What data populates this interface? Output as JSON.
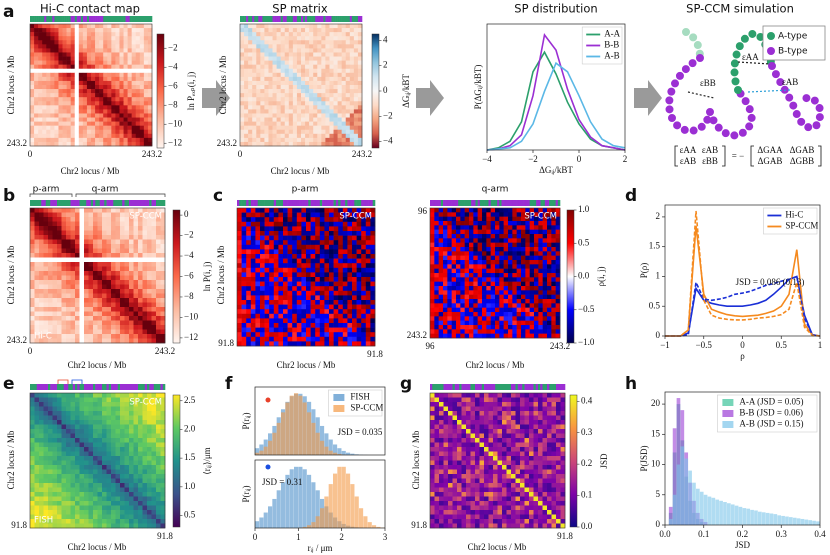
{
  "panels": {
    "a": {
      "letter": "a",
      "title": "Hi-C contact map",
      "axis_label": "Chr2 locus / Mb",
      "ticks": [
        0,
        243.2
      ],
      "colorbar": {
        "label": "ln Pₑₓₚ(i, j)",
        "lim": [
          -12.5,
          -0.5
        ],
        "ticks": [
          {
            "value": -2,
            "label": "−2"
          },
          {
            "value": -4,
            "label": "−4"
          },
          {
            "value": -6,
            "label": "−6"
          },
          {
            "value": -8,
            "label": "−8"
          },
          {
            "value": -10,
            "label": "−10"
          },
          {
            "value": -12,
            "label": "−12"
          }
        ]
      }
    },
    "sp": {
      "title": "SP matrix",
      "axis_label": "Chr2 locus / Mb",
      "ticks": [
        0,
        243.2
      ],
      "colorbar": {
        "label": "ΔGᵢⱼ/kBT",
        "lim": [
          -4.5,
          4.5
        ],
        "ticks": [
          4,
          2,
          0,
          {
            "value": -2,
            "label": "−2"
          },
          {
            "value": -4,
            "label": "−4"
          }
        ]
      }
    },
    "sim": {
      "title": "SP-CCM simulation",
      "legend": [
        "A-type",
        "B-type"
      ],
      "eps": [
        "εAA",
        "εAB",
        "εBB"
      ],
      "matrix_left": [
        [
          "εAA",
          "εAB"
        ],
        [
          "εAB",
          "εBB"
        ]
      ],
      "equals": "= −",
      "matrix_right": [
        [
          "ΔGAA",
          "ΔGAB"
        ],
        [
          "ΔGAB",
          "ΔGBB"
        ]
      ]
    },
    "b": {
      "letter": "b",
      "arms": [
        "p-arm",
        "q-arm"
      ],
      "tags": [
        "SP-CCM",
        "Hi-C"
      ],
      "axis_label": "Chr2 locus / Mb",
      "ticks": [
        0,
        243.2
      ],
      "colorbar": {
        "label": "ln P(i, j)",
        "lim": [
          -12.5,
          0.5
        ],
        "ticks": [
          0,
          {
            "value": -2,
            "label": "−2"
          },
          {
            "value": -4,
            "label": "−4"
          },
          {
            "value": -6,
            "label": "−6"
          },
          {
            "value": -8,
            "label": "−8"
          },
          {
            "value": -10,
            "label": "−10"
          },
          {
            "value": -12,
            "label": "−12"
          }
        ]
      }
    },
    "c": {
      "letter": "c",
      "arms": [
        "p-arm",
        "q-arm"
      ],
      "tag": "SP-CCM",
      "axis_label": "Chr2 locus / Mb",
      "p_ticks": [
        91.8
      ],
      "q_ticks": [
        96,
        243.2
      ],
      "colorbar": {
        "label": "ρ(i, j)",
        "lim": [
          -1,
          1
        ],
        "ticks": [
          {
            "value": 1,
            "label": "1.0"
          },
          0.5,
          {
            "value": 0,
            "label": "0.0"
          },
          {
            "value": -0.5,
            "label": "−0.5"
          },
          {
            "value": -1,
            "label": "−1.0"
          }
        ]
      }
    },
    "d": {
      "letter": "d"
    },
    "e": {
      "letter": "e",
      "tags": [
        "SP-CCM",
        "FISH"
      ],
      "axis_label": "Chr2 locus / Mb",
      "ticks": [
        91.8
      ],
      "colorbar": {
        "label": "⟨rᵢⱼ⟩/μm",
        "lim": [
          0.3,
          2.6
        ],
        "ticks": [
          0.5,
          {
            "value": 1,
            "label": "1.0"
          },
          1.5,
          {
            "value": 2,
            "label": "2.0"
          },
          2.5
        ]
      }
    },
    "f": {
      "letter": "f"
    },
    "g": {
      "letter": "g",
      "axis_label": "Chr2 locus / Mb",
      "ticks": [
        91.8
      ],
      "colorbar": {
        "label": "JSD",
        "lim": [
          0,
          0.42
        ],
        "ticks": [
          {
            "value": 0,
            "label": "0.0"
          },
          0.1,
          0.2,
          0.3,
          0.4
        ]
      }
    },
    "h": {
      "letter": "h"
    }
  },
  "chart_data": [
    {
      "type": "line",
      "title": "SP distribution",
      "xlabel": "ΔGᵢⱼ/kBT",
      "ylabel": "P(ΔGᵢⱼ/kBT)",
      "x": [
        -4,
        -3.5,
        -3,
        -2.5,
        -2,
        -1.5,
        -1,
        -0.5,
        0,
        0.5,
        1,
        1.5,
        2
      ],
      "xlim": [
        -4,
        2
      ],
      "ylim": [
        0,
        0.58
      ],
      "xticks": [
        {
          "value": -4,
          "label": "−4"
        },
        {
          "value": -2,
          "label": "−2"
        },
        0,
        2
      ],
      "legend": "upper right",
      "series": [
        {
          "name": "A-A",
          "color": "#2ca06c",
          "values": [
            0,
            0.01,
            0.04,
            0.13,
            0.36,
            0.45,
            0.35,
            0.22,
            0.12,
            0.05,
            0.02,
            0.01,
            0
          ]
        },
        {
          "name": "B-B",
          "color": "#9b2fd3",
          "values": [
            0,
            0.005,
            0.02,
            0.07,
            0.25,
            0.53,
            0.46,
            0.28,
            0.14,
            0.06,
            0.02,
            0.01,
            0
          ]
        },
        {
          "name": "A-B",
          "color": "#5bb8e6",
          "values": [
            0,
            0.005,
            0.01,
            0.04,
            0.12,
            0.27,
            0.4,
            0.36,
            0.25,
            0.13,
            0.05,
            0.02,
            0.01
          ]
        }
      ]
    },
    {
      "type": "line",
      "xlabel": "ρ",
      "ylabel": "P(ρ)",
      "x": [
        -1,
        -0.9,
        -0.8,
        -0.7,
        -0.6,
        -0.5,
        -0.4,
        -0.3,
        -0.2,
        -0.1,
        0,
        0.1,
        0.2,
        0.3,
        0.4,
        0.5,
        0.6,
        0.7,
        0.8,
        0.9,
        1
      ],
      "xlim": [
        -1,
        1
      ],
      "ylim": [
        0,
        2.2
      ],
      "xticks": [
        {
          "value": -1,
          "label": "−1"
        },
        {
          "value": -0.5,
          "label": "−0.5"
        },
        0,
        0.5,
        1
      ],
      "yticks": [
        0,
        0.5,
        1,
        1.5,
        2
      ],
      "annotation": "JSD = 0.086 (0.13)",
      "legend": "upper right",
      "series": [
        {
          "name": "Hi-C",
          "color": "#1a2fd6",
          "values": [
            0,
            0,
            0,
            0.05,
            0.8,
            0.6,
            0.55,
            0.52,
            0.5,
            0.5,
            0.5,
            0.52,
            0.55,
            0.6,
            0.7,
            0.82,
            0.95,
            1.0,
            0.35,
            0.02,
            0
          ]
        },
        {
          "name": "SP-CCM",
          "color": "#f58a1f",
          "values": [
            0,
            0,
            0,
            0.1,
            1.85,
            0.7,
            0.45,
            0.4,
            0.36,
            0.34,
            0.33,
            0.34,
            0.35,
            0.38,
            0.42,
            0.5,
            0.7,
            1.45,
            0.2,
            0.02,
            0
          ]
        },
        {
          "color": "#1a2fd6",
          "style": "dashed",
          "values": [
            0,
            0,
            0,
            0.02,
            0.9,
            0.62,
            0.6,
            0.62,
            0.65,
            0.7,
            0.72,
            0.75,
            0.8,
            0.85,
            0.88,
            0.92,
            0.95,
            1.0,
            0.3,
            0.02,
            0
          ]
        },
        {
          "color": "#f58a1f",
          "style": "dashed",
          "values": [
            0,
            0,
            0,
            0.1,
            2.1,
            0.6,
            0.35,
            0.3,
            0.28,
            0.27,
            0.27,
            0.28,
            0.3,
            0.31,
            0.33,
            0.36,
            0.45,
            0.9,
            0.15,
            0.01,
            0
          ]
        }
      ]
    },
    {
      "type": "histogram",
      "ylabel": "P(rᵢⱼ)",
      "bins": [
        0,
        0.1,
        0.2,
        0.3,
        0.4,
        0.5,
        0.6,
        0.7,
        0.8,
        0.9,
        1,
        1.1,
        1.2,
        1.3,
        1.4,
        1.5,
        1.6,
        1.7,
        1.8,
        1.9,
        2,
        2.1,
        2.2,
        2.3,
        2.4,
        2.5,
        2.6,
        2.7,
        2.8,
        2.9,
        3
      ],
      "xlim": [
        0,
        3
      ],
      "ylim": [
        0,
        1.1
      ],
      "annotation": "JSD = 0.035",
      "legend": "upper right",
      "series": [
        {
          "name": "FISH",
          "color": "#4c8fc9",
          "values": [
            0.11,
            0.17,
            0.25,
            0.35,
            0.47,
            0.61,
            0.74,
            0.86,
            0.95,
            0.99,
            0.99,
            0.95,
            0.86,
            0.74,
            0.61,
            0.47,
            0.35,
            0.25,
            0.17,
            0.11,
            0.066,
            0.038,
            0.021,
            0.011,
            0.005,
            0.002,
            0,
            0,
            0,
            0
          ]
        },
        {
          "name": "SP-CCM",
          "color": "#f39a46",
          "values": [
            0.037,
            0.07,
            0.135,
            0.23,
            0.36,
            0.52,
            0.69,
            0.85,
            0.96,
            1.0,
            0.96,
            0.85,
            0.69,
            0.52,
            0.36,
            0.23,
            0.135,
            0.07,
            0.037,
            0.017,
            0.007,
            0,
            0,
            0,
            0,
            0,
            0,
            0,
            0,
            0
          ]
        }
      ]
    },
    {
      "type": "histogram",
      "xlabel": "rᵢⱼ / μm",
      "ylabel": "P(rᵢⱼ)",
      "bins": [
        0,
        0.1,
        0.2,
        0.3,
        0.4,
        0.5,
        0.6,
        0.7,
        0.8,
        0.9,
        1,
        1.1,
        1.2,
        1.3,
        1.4,
        1.5,
        1.6,
        1.7,
        1.8,
        1.9,
        2,
        2.1,
        2.2,
        2.3,
        2.4,
        2.5,
        2.6,
        2.7,
        2.8,
        2.9,
        3
      ],
      "xlim": [
        0,
        3
      ],
      "ylim": [
        0,
        1.1
      ],
      "xticks": [
        0,
        1,
        2,
        3
      ],
      "annotation": "JSD = 0.31",
      "series": [
        {
          "color": "#4c8fc9",
          "values": [
            0.11,
            0.17,
            0.25,
            0.35,
            0.47,
            0.61,
            0.74,
            0.86,
            0.95,
            0.99,
            0.99,
            0.95,
            0.86,
            0.74,
            0.61,
            0.47,
            0.35,
            0.25,
            0.17,
            0.11,
            0.066,
            0.038,
            0.021,
            0.011,
            0.005,
            0.002,
            0,
            0,
            0,
            0
          ]
        },
        {
          "color": "#f39a46",
          "values": [
            0,
            0,
            0,
            0,
            0,
            0,
            0,
            0,
            0,
            0,
            0.007,
            0.018,
            0.045,
            0.095,
            0.19,
            0.32,
            0.51,
            0.71,
            0.88,
            0.99,
            0.99,
            0.88,
            0.71,
            0.51,
            0.32,
            0.19,
            0.095,
            0.045,
            0.018,
            0.007
          ]
        }
      ]
    },
    {
      "type": "histogram",
      "xlabel": "JSD",
      "ylabel": "P(JSD)",
      "bins": [
        0,
        0.01,
        0.02,
        0.03,
        0.04,
        0.05,
        0.06,
        0.07,
        0.08,
        0.09,
        0.1,
        0.11,
        0.12,
        0.13,
        0.14,
        0.15,
        0.16,
        0.17,
        0.18,
        0.19,
        0.2,
        0.21,
        0.22,
        0.23,
        0.24,
        0.25,
        0.26,
        0.27,
        0.28,
        0.29,
        0.3,
        0.31,
        0.32,
        0.33,
        0.34,
        0.35,
        0.36,
        0.37,
        0.38,
        0.39,
        0.4
      ],
      "xlim": [
        0,
        0.4
      ],
      "ylim": [
        0,
        22
      ],
      "xticks": [
        {
          "value": 0,
          "label": "0.0"
        },
        0.1,
        0.2,
        0.3,
        0.4
      ],
      "yticks": [
        0,
        5,
        10,
        15,
        20
      ],
      "legend": "upper right",
      "series": [
        {
          "name": "A-A (JSD = 0.05)",
          "color": "#3cc39a",
          "values": [
            0,
            2,
            12,
            20,
            14,
            8,
            4,
            2,
            1,
            0.5,
            0,
            0,
            0,
            0,
            0,
            0,
            0,
            0,
            0,
            0,
            0,
            0,
            0,
            0,
            0,
            0,
            0,
            0,
            0,
            0,
            0,
            0,
            0,
            0,
            0,
            0,
            0,
            0,
            0,
            0
          ]
        },
        {
          "name": "B-B (JSD = 0.06)",
          "color": "#9b3fd6",
          "values": [
            0,
            3,
            16,
            21,
            19,
            12,
            7,
            4,
            2,
            1,
            0.5,
            0,
            0,
            0,
            0,
            0,
            0,
            0,
            0,
            0,
            0,
            0,
            0,
            0,
            0,
            0,
            0,
            0,
            0,
            0,
            0,
            0,
            0,
            0,
            0,
            0,
            0,
            0,
            0,
            0
          ]
        },
        {
          "name": "A-B (JSD = 0.15)",
          "color": "#7cc4ea",
          "values": [
            0,
            1,
            5,
            10,
            13,
            11,
            9,
            7,
            6,
            5.5,
            5,
            4.7,
            4.5,
            4.2,
            4,
            3.8,
            3.6,
            3.4,
            3.2,
            3,
            2.8,
            2.7,
            2.5,
            2.4,
            2.2,
            2.1,
            2,
            1.9,
            1.8,
            1.6,
            1.5,
            1.4,
            1.3,
            1.2,
            1.1,
            1,
            0.9,
            0.8,
            0.7,
            0.6
          ]
        }
      ]
    }
  ]
}
